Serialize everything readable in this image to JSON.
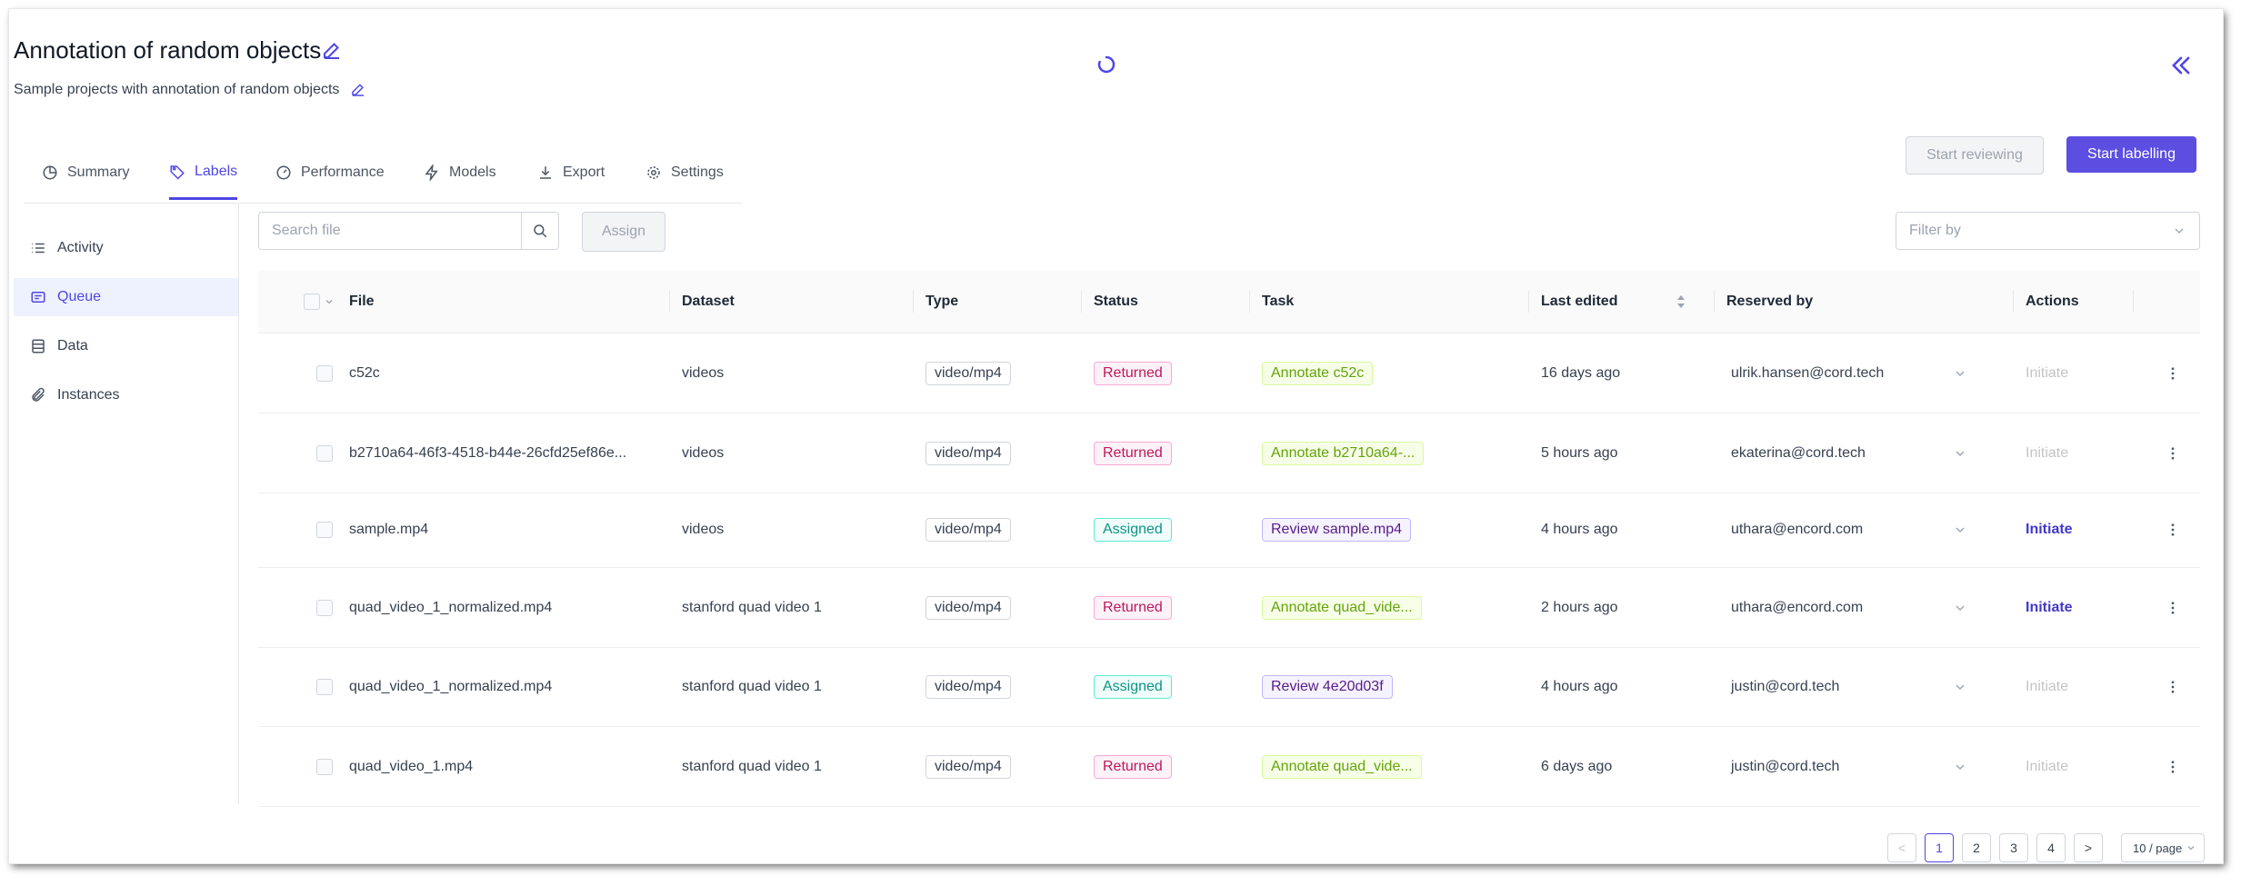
{
  "project": {
    "title": "Annotation of random objects",
    "subtitle": "Sample projects with annotation of random objects"
  },
  "tabs": [
    {
      "label": "Summary",
      "icon": "pie-chart-icon",
      "active": false
    },
    {
      "label": "Labels",
      "icon": "tag-icon",
      "active": true
    },
    {
      "label": "Performance",
      "icon": "gauge-icon",
      "active": false
    },
    {
      "label": "Models",
      "icon": "bolt-icon",
      "active": false
    },
    {
      "label": "Export",
      "icon": "download-icon",
      "active": false
    },
    {
      "label": "Settings",
      "icon": "gear-icon",
      "active": false
    }
  ],
  "actions": {
    "start_reviewing": "Start reviewing",
    "start_labelling": "Start labelling"
  },
  "sidebar": {
    "items": [
      {
        "label": "Activity",
        "icon": "list-icon",
        "active": false
      },
      {
        "label": "Queue",
        "icon": "queue-icon",
        "active": true
      },
      {
        "label": "Data",
        "icon": "data-icon",
        "active": false
      },
      {
        "label": "Instances",
        "icon": "paperclip-icon",
        "active": false
      }
    ]
  },
  "toolbar": {
    "search_placeholder": "Search file",
    "assign_label": "Assign",
    "filter_placeholder": "Filter by"
  },
  "table": {
    "columns": [
      "File",
      "Dataset",
      "Type",
      "Status",
      "Task",
      "Last edited",
      "Reserved by",
      "Actions"
    ],
    "rows": [
      {
        "file": "c52c",
        "dataset": "videos",
        "type": "video/mp4",
        "status": "Returned",
        "task": "Annotate c52c",
        "task_kind": "annotate",
        "last_edited": "16 days ago",
        "reserved_by": "ulrik.hansen@cord.tech",
        "action": "Initiate",
        "action_enabled": false
      },
      {
        "file": "b2710a64-46f3-4518-b44e-26cfd25ef86e...",
        "dataset": "videos",
        "type": "video/mp4",
        "status": "Returned",
        "task": "Annotate b2710a64-...",
        "task_kind": "annotate",
        "last_edited": "5 hours ago",
        "reserved_by": "ekaterina@cord.tech",
        "action": "Initiate",
        "action_enabled": false
      },
      {
        "file": "sample.mp4",
        "dataset": "videos",
        "type": "video/mp4",
        "status": "Assigned",
        "task": "Review sample.mp4",
        "task_kind": "review",
        "last_edited": "4 hours ago",
        "reserved_by": "uthara@encord.com",
        "action": "Initiate",
        "action_enabled": true
      },
      {
        "file": "quad_video_1_normalized.mp4",
        "dataset": "stanford quad video 1",
        "type": "video/mp4",
        "status": "Returned",
        "task": "Annotate quad_vide...",
        "task_kind": "annotate",
        "last_edited": "2 hours ago",
        "reserved_by": "uthara@encord.com",
        "action": "Initiate",
        "action_enabled": true
      },
      {
        "file": "quad_video_1_normalized.mp4",
        "dataset": "stanford quad video 1",
        "type": "video/mp4",
        "status": "Assigned",
        "task": "Review 4e20d03f",
        "task_kind": "review",
        "last_edited": "4 hours ago",
        "reserved_by": "justin@cord.tech",
        "action": "Initiate",
        "action_enabled": false
      },
      {
        "file": "quad_video_1.mp4",
        "dataset": "stanford quad video 1",
        "type": "video/mp4",
        "status": "Returned",
        "task": "Annotate quad_vide...",
        "task_kind": "annotate",
        "last_edited": "6 days ago",
        "reserved_by": "justin@cord.tech",
        "action": "Initiate",
        "action_enabled": false
      }
    ]
  },
  "pagination": {
    "prev": "<",
    "pages": [
      "1",
      "2",
      "3",
      "4"
    ],
    "current": "1",
    "next": ">",
    "page_size": "10 / page"
  },
  "colors": {
    "accent": "#4f46e5",
    "primary_button": "#5b4ee0",
    "returned": "#be185d",
    "assigned": "#0d9488",
    "annotate": "#65a30d",
    "review": "#581c87"
  }
}
